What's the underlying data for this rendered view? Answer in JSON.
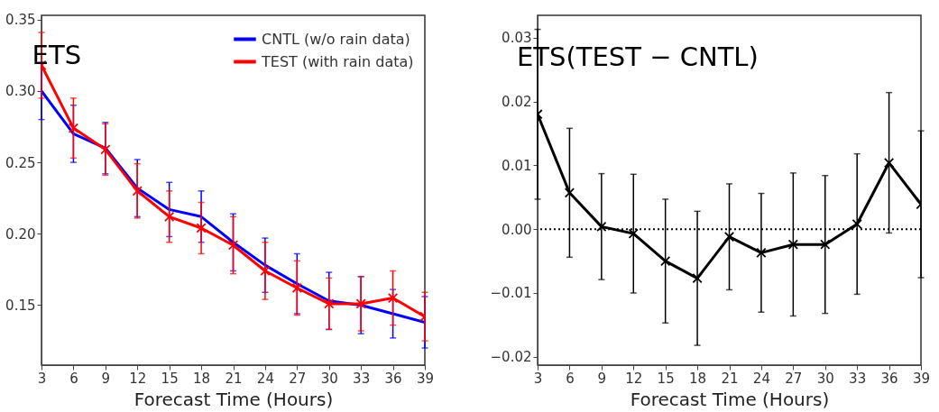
{
  "chart_data": [
    {
      "type": "line",
      "title": "ETS",
      "xlabel": "Forecast Time (Hours)",
      "x": [
        3,
        6,
        9,
        12,
        15,
        18,
        21,
        24,
        27,
        30,
        33,
        36,
        39
      ],
      "xlim": [
        3,
        39
      ],
      "xticks": [
        3,
        6,
        9,
        12,
        15,
        18,
        21,
        24,
        27,
        30,
        33,
        36,
        39
      ],
      "ylim": [
        0.108,
        0.353
      ],
      "yticks": [
        0.15,
        {
          "value": 0.2,
          "label": "0.20"
        },
        0.25,
        {
          "value": 0.3,
          "label": "0.30"
        },
        0.35
      ],
      "grid": false,
      "legend": "top right",
      "series": [
        {
          "name": "CNTL (w/o rain data)",
          "color": "#0000ff",
          "marker": "none",
          "values": [
            0.3,
            0.27,
            0.26,
            0.232,
            0.217,
            0.212,
            0.194,
            0.178,
            0.165,
            0.153,
            0.15,
            0.144,
            0.138
          ],
          "errors": [
            0.02,
            0.02,
            0.018,
            0.02,
            0.019,
            0.018,
            0.02,
            0.019,
            0.021,
            0.02,
            0.02,
            0.017,
            0.018
          ]
        },
        {
          "name": "TEST (with rain data)",
          "color": "#ff0000",
          "marker": "cross",
          "values": [
            0.318,
            0.274,
            0.259,
            0.23,
            0.212,
            0.204,
            0.192,
            0.174,
            0.162,
            0.151,
            0.151,
            0.155,
            0.142
          ],
          "errors": [
            0.023,
            0.021,
            0.018,
            0.019,
            0.018,
            0.018,
            0.02,
            0.02,
            0.019,
            0.018,
            0.019,
            0.019,
            0.017
          ]
        }
      ]
    },
    {
      "type": "line",
      "title": "ETS(TEST − CNTL)",
      "xlabel": "Forecast Time (Hours)",
      "x": [
        3,
        6,
        9,
        12,
        15,
        18,
        21,
        24,
        27,
        30,
        33,
        36,
        39
      ],
      "xlim": [
        3,
        39
      ],
      "xticks": [
        3,
        6,
        9,
        12,
        15,
        18,
        21,
        24,
        27,
        30,
        33,
        36,
        39
      ],
      "ylim": [
        -0.0213,
        0.0335
      ],
      "yticks": [
        -0.02,
        -0.01,
        {
          "value": 0,
          "label": "0.00"
        },
        0.01,
        0.02,
        0.03
      ],
      "grid": false,
      "ref_lines": [
        {
          "axis": "y",
          "value": 0,
          "line_style": "dotted",
          "color": "#000000"
        }
      ],
      "series": [
        {
          "color": "#000000",
          "marker": "cross",
          "values": [
            0.018,
            0.0057,
            0.0004,
            -0.0007,
            -0.005,
            -0.0077,
            -0.0012,
            -0.0037,
            -0.0024,
            -0.0024,
            0.0008,
            0.0104,
            0.0039
          ],
          "errors": [
            0.0133,
            0.0101,
            0.0083,
            0.0093,
            0.0097,
            0.0105,
            0.0083,
            0.0093,
            0.0112,
            0.0108,
            0.011,
            0.011,
            0.0115
          ]
        }
      ]
    }
  ]
}
